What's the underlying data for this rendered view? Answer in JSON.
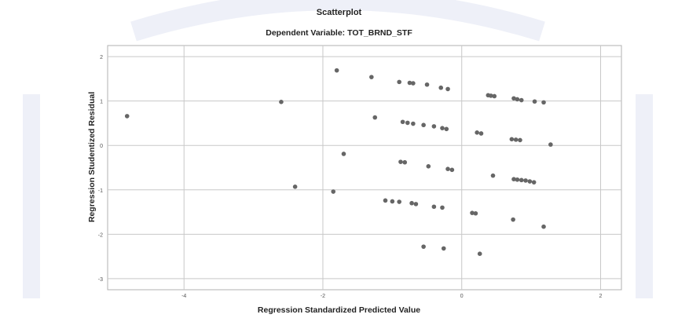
{
  "chart_data": {
    "type": "scatter",
    "title": "Scatterplot",
    "subtitle": "Dependent Variable: TOT_BRND_STF",
    "xlabel": "Regression Standardized Predicted Value",
    "ylabel": "Regression Studentized Residual",
    "xlim": [
      -5.1,
      2.3
    ],
    "ylim": [
      -3.25,
      2.25
    ],
    "x_ticks": [
      -4,
      -2,
      0,
      2
    ],
    "y_ticks": [
      2,
      1,
      0,
      -1,
      -2,
      -3
    ],
    "grid": true,
    "point_color": "#666666",
    "points": [
      {
        "x": -4.82,
        "y": 0.66
      },
      {
        "x": -2.6,
        "y": 0.98
      },
      {
        "x": -1.8,
        "y": 1.69
      },
      {
        "x": -1.3,
        "y": 1.54
      },
      {
        "x": -0.9,
        "y": 1.43
      },
      {
        "x": -0.75,
        "y": 1.41
      },
      {
        "x": -0.7,
        "y": 1.4
      },
      {
        "x": -0.5,
        "y": 1.37
      },
      {
        "x": -0.3,
        "y": 1.3
      },
      {
        "x": -0.2,
        "y": 1.27
      },
      {
        "x": 0.38,
        "y": 1.13
      },
      {
        "x": 0.42,
        "y": 1.12
      },
      {
        "x": 0.47,
        "y": 1.11
      },
      {
        "x": 0.75,
        "y": 1.06
      },
      {
        "x": 0.8,
        "y": 1.04
      },
      {
        "x": 0.86,
        "y": 1.02
      },
      {
        "x": 1.05,
        "y": 0.99
      },
      {
        "x": 1.18,
        "y": 0.97
      },
      {
        "x": -1.25,
        "y": 0.63
      },
      {
        "x": -0.85,
        "y": 0.53
      },
      {
        "x": -0.78,
        "y": 0.51
      },
      {
        "x": -0.7,
        "y": 0.49
      },
      {
        "x": -0.55,
        "y": 0.46
      },
      {
        "x": -0.4,
        "y": 0.43
      },
      {
        "x": -0.28,
        "y": 0.39
      },
      {
        "x": -0.22,
        "y": 0.37
      },
      {
        "x": 0.22,
        "y": 0.29
      },
      {
        "x": 0.28,
        "y": 0.27
      },
      {
        "x": 0.72,
        "y": 0.14
      },
      {
        "x": 0.78,
        "y": 0.13
      },
      {
        "x": 0.84,
        "y": 0.12
      },
      {
        "x": 1.28,
        "y": 0.02
      },
      {
        "x": -1.7,
        "y": -0.19
      },
      {
        "x": -0.88,
        "y": -0.37
      },
      {
        "x": -0.82,
        "y": -0.38
      },
      {
        "x": -0.48,
        "y": -0.47
      },
      {
        "x": -0.2,
        "y": -0.53
      },
      {
        "x": -0.14,
        "y": -0.55
      },
      {
        "x": 0.45,
        "y": -0.68
      },
      {
        "x": 0.75,
        "y": -0.76
      },
      {
        "x": 0.8,
        "y": -0.77
      },
      {
        "x": 0.86,
        "y": -0.78
      },
      {
        "x": 0.92,
        "y": -0.79
      },
      {
        "x": 0.98,
        "y": -0.81
      },
      {
        "x": 1.04,
        "y": -0.83
      },
      {
        "x": -2.4,
        "y": -0.93
      },
      {
        "x": -1.85,
        "y": -1.04
      },
      {
        "x": -1.1,
        "y": -1.24
      },
      {
        "x": -1.0,
        "y": -1.26
      },
      {
        "x": -0.9,
        "y": -1.27
      },
      {
        "x": -0.72,
        "y": -1.3
      },
      {
        "x": -0.66,
        "y": -1.32
      },
      {
        "x": -0.4,
        "y": -1.38
      },
      {
        "x": -0.28,
        "y": -1.4
      },
      {
        "x": 0.15,
        "y": -1.52
      },
      {
        "x": 0.2,
        "y": -1.53
      },
      {
        "x": 0.74,
        "y": -1.67
      },
      {
        "x": 1.18,
        "y": -1.83
      },
      {
        "x": -0.55,
        "y": -2.28
      },
      {
        "x": -0.26,
        "y": -2.32
      },
      {
        "x": 0.26,
        "y": -2.44
      }
    ]
  }
}
